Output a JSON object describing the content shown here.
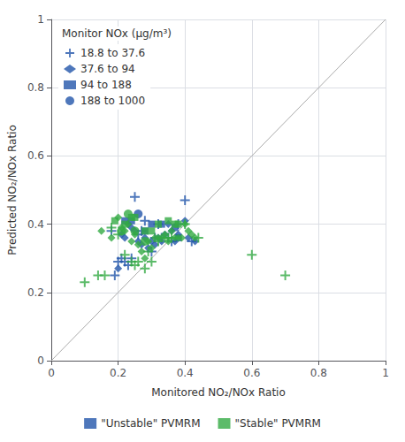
{
  "chart_data": {
    "type": "scatter",
    "xlabel": "Monitored NO₂/NOx Ratio",
    "ylabel": "Predicted NO₂/NOx Ratio",
    "xlim": [
      0,
      1
    ],
    "ylim": [
      0,
      1
    ],
    "xticks": [
      0,
      0.2,
      0.4,
      0.6,
      0.8,
      1
    ],
    "yticks": [
      0,
      0.2,
      0.4,
      0.6,
      0.8,
      1
    ],
    "grid": true,
    "legend": "upper left",
    "legend_title": "Monitor NOx (μg/m³)",
    "marker_legend": [
      {
        "label": "18.8 to 37.6",
        "marker": "plus"
      },
      {
        "label": "37.6 to 94",
        "marker": "diamond"
      },
      {
        "label": "94 to 188",
        "marker": "square"
      },
      {
        "label": "188 to 1000",
        "marker": "circle"
      }
    ],
    "diagonal": {
      "type": "line",
      "color": "#aaaaaa",
      "values": [
        [
          0,
          0
        ],
        [
          1,
          1
        ]
      ]
    },
    "series": [
      {
        "name": "\"Unstable\" PVMRM",
        "color": "#2255aa",
        "points": [
          {
            "marker": "plus",
            "values": [
              [
                0.18,
                0.38
              ],
              [
                0.19,
                0.25
              ],
              [
                0.2,
                0.29
              ],
              [
                0.21,
                0.3
              ],
              [
                0.22,
                0.29
              ],
              [
                0.23,
                0.28
              ],
              [
                0.24,
                0.3
              ],
              [
                0.25,
                0.48
              ],
              [
                0.26,
                0.37
              ],
              [
                0.27,
                0.38
              ],
              [
                0.28,
                0.41
              ],
              [
                0.3,
                0.32
              ],
              [
                0.31,
                0.36
              ],
              [
                0.32,
                0.4
              ],
              [
                0.33,
                0.36
              ],
              [
                0.35,
                0.36
              ],
              [
                0.36,
                0.35
              ],
              [
                0.38,
                0.4
              ],
              [
                0.4,
                0.47
              ],
              [
                0.42,
                0.35
              ]
            ]
          },
          {
            "marker": "diamond",
            "values": [
              [
                0.2,
                0.27
              ],
              [
                0.21,
                0.37
              ],
              [
                0.22,
                0.36
              ],
              [
                0.23,
                0.4
              ],
              [
                0.24,
                0.39
              ],
              [
                0.25,
                0.38
              ],
              [
                0.26,
                0.35
              ],
              [
                0.27,
                0.34
              ],
              [
                0.28,
                0.36
              ],
              [
                0.29,
                0.33
              ],
              [
                0.3,
                0.35
              ],
              [
                0.31,
                0.34
              ],
              [
                0.32,
                0.36
              ],
              [
                0.33,
                0.35
              ],
              [
                0.34,
                0.37
              ],
              [
                0.35,
                0.4
              ],
              [
                0.36,
                0.38
              ],
              [
                0.37,
                0.35
              ],
              [
                0.38,
                0.37
              ],
              [
                0.4,
                0.41
              ],
              [
                0.41,
                0.36
              ],
              [
                0.43,
                0.35
              ]
            ]
          },
          {
            "marker": "square",
            "values": [
              [
                0.22,
                0.41
              ],
              [
                0.24,
                0.41
              ],
              [
                0.28,
                0.38
              ],
              [
                0.3,
                0.4
              ],
              [
                0.33,
                0.4
              ],
              [
                0.37,
                0.39
              ],
              [
                0.38,
                0.36
              ]
            ]
          },
          {
            "marker": "circle",
            "values": [
              [
                0.26,
                0.43
              ]
            ]
          }
        ]
      },
      {
        "name": "\"Stable\" PVMRM",
        "color": "#33aa44",
        "points": [
          {
            "marker": "plus",
            "values": [
              [
                0.1,
                0.23
              ],
              [
                0.14,
                0.25
              ],
              [
                0.16,
                0.25
              ],
              [
                0.18,
                0.39
              ],
              [
                0.2,
                0.37
              ],
              [
                0.22,
                0.31
              ],
              [
                0.24,
                0.29
              ],
              [
                0.25,
                0.28
              ],
              [
                0.26,
                0.29
              ],
              [
                0.28,
                0.27
              ],
              [
                0.29,
                0.32
              ],
              [
                0.3,
                0.29
              ],
              [
                0.32,
                0.35
              ],
              [
                0.34,
                0.36
              ],
              [
                0.35,
                0.36
              ],
              [
                0.36,
                0.36
              ],
              [
                0.4,
                0.4
              ],
              [
                0.44,
                0.36
              ],
              [
                0.6,
                0.31
              ],
              [
                0.7,
                0.25
              ]
            ]
          },
          {
            "marker": "diamond",
            "values": [
              [
                0.15,
                0.38
              ],
              [
                0.18,
                0.36
              ],
              [
                0.2,
                0.42
              ],
              [
                0.21,
                0.39
              ],
              [
                0.22,
                0.38
              ],
              [
                0.23,
                0.4
              ],
              [
                0.24,
                0.35
              ],
              [
                0.25,
                0.37
              ],
              [
                0.26,
                0.34
              ],
              [
                0.27,
                0.32
              ],
              [
                0.28,
                0.3
              ],
              [
                0.29,
                0.35
              ],
              [
                0.3,
                0.33
              ],
              [
                0.31,
                0.36
              ],
              [
                0.32,
                0.36
              ],
              [
                0.33,
                0.36
              ],
              [
                0.34,
                0.37
              ],
              [
                0.35,
                0.35
              ],
              [
                0.36,
                0.38
              ],
              [
                0.37,
                0.36
              ],
              [
                0.38,
                0.36
              ],
              [
                0.39,
                0.36
              ],
              [
                0.4,
                0.4
              ],
              [
                0.41,
                0.38
              ],
              [
                0.42,
                0.37
              ],
              [
                0.43,
                0.36
              ]
            ]
          },
          {
            "marker": "square",
            "values": [
              [
                0.19,
                0.41
              ],
              [
                0.22,
                0.4
              ],
              [
                0.24,
                0.42
              ],
              [
                0.25,
                0.42
              ],
              [
                0.28,
                0.38
              ],
              [
                0.3,
                0.38
              ],
              [
                0.32,
                0.4
              ],
              [
                0.35,
                0.41
              ],
              [
                0.37,
                0.4
              ],
              [
                0.38,
                0.4
              ]
            ]
          },
          {
            "marker": "circle",
            "values": [
              [
                0.21,
                0.38
              ],
              [
                0.23,
                0.43
              ],
              [
                0.25,
                0.38
              ],
              [
                0.28,
                0.35
              ]
            ]
          }
        ]
      }
    ]
  }
}
